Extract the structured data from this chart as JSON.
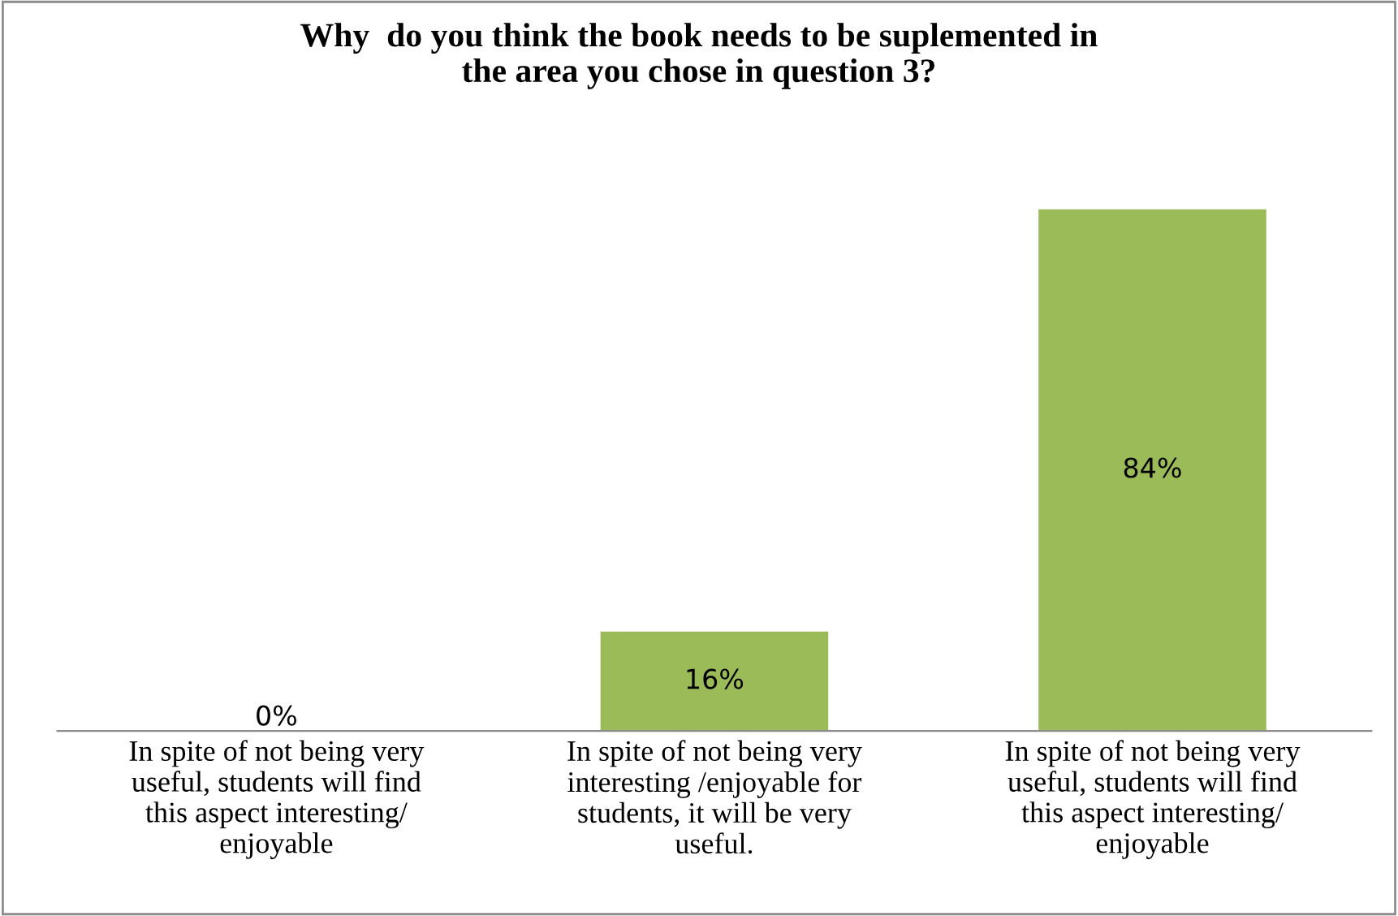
{
  "chart_data": {
    "type": "bar",
    "title": "Why  do you think the book needs to be suplemented in\nthe area you chose in question 3?",
    "categories": [
      "In spite of not being very\nuseful, students will find\nthis aspect interesting/\nenjoyable",
      "In spite of not being very\ninteresting /enjoyable for\nstudents, it will be very\nuseful.",
      "In spite of not being very\nuseful, students will find\nthis aspect interesting/\nenjoyable"
    ],
    "values": [
      0,
      16,
      84
    ],
    "value_labels": [
      "0%",
      "16%",
      "84%"
    ],
    "color": "#9bbb59",
    "grid": false,
    "legend": false,
    "tick_labels": "x"
  }
}
